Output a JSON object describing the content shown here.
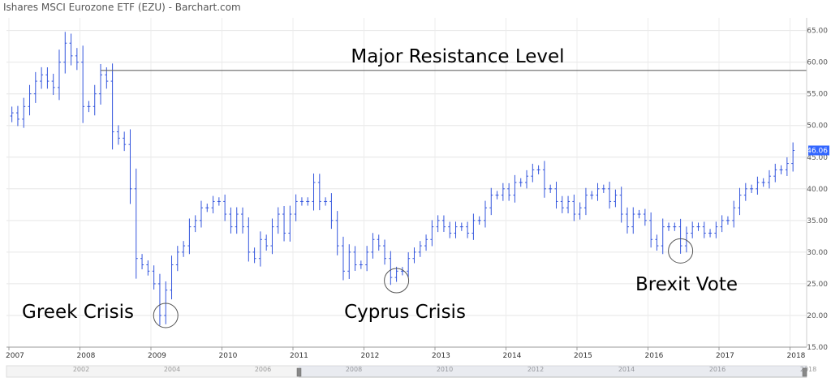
{
  "chart_data": {
    "type": "ohlc",
    "title": "Ishares MSCI Eurozone ETF (EZU) - Barchart.com",
    "y_ticks": [
      "15.00",
      "20.00",
      "25.00",
      "30.00",
      "35.00",
      "40.00",
      "45.00",
      "50.00",
      "55.00",
      "60.00",
      "65.00"
    ],
    "ylim": [
      15,
      67
    ],
    "x_ticks": [
      "2007",
      "2008",
      "2009",
      "2010",
      "2011",
      "2012",
      "2013",
      "2014",
      "2015",
      "2016",
      "2017",
      "2018"
    ],
    "navigator_ticks": [
      "2002",
      "2004",
      "2006",
      "2008",
      "2010",
      "2012",
      "2014",
      "2016",
      "2018"
    ],
    "grid": true,
    "series_color": "#3355dd",
    "last_price": "46.06",
    "last_price_color": "#3366ff",
    "resistance": {
      "value": 58.7,
      "start": "2008-04",
      "label": "Major Resistance Level"
    },
    "annotations": [
      {
        "label": "Greek Crisis",
        "date": "2009-03",
        "price": 20.0
      },
      {
        "label": "Cyprus Crisis",
        "date": "2012-06",
        "price": 25.5
      },
      {
        "label": "Brexit Vote",
        "date": "2016-06",
        "price": 30.2
      }
    ],
    "monthly_close": [
      [
        "2007-01",
        52
      ],
      [
        "2007-02",
        51
      ],
      [
        "2007-03",
        53
      ],
      [
        "2007-04",
        55
      ],
      [
        "2007-05",
        57
      ],
      [
        "2007-06",
        58
      ],
      [
        "2007-07",
        57
      ],
      [
        "2007-08",
        56
      ],
      [
        "2007-09",
        60
      ],
      [
        "2007-10",
        63
      ],
      [
        "2007-11",
        61
      ],
      [
        "2007-12",
        60
      ],
      [
        "2008-01",
        53
      ],
      [
        "2008-02",
        53
      ],
      [
        "2008-03",
        55
      ],
      [
        "2008-04",
        58
      ],
      [
        "2008-05",
        57
      ],
      [
        "2008-06",
        49
      ],
      [
        "2008-07",
        48
      ],
      [
        "2008-08",
        47
      ],
      [
        "2008-09",
        40
      ],
      [
        "2008-10",
        29
      ],
      [
        "2008-11",
        28
      ],
      [
        "2008-12",
        27
      ],
      [
        "2009-01",
        25
      ],
      [
        "2009-02",
        20
      ],
      [
        "2009-03",
        24
      ],
      [
        "2009-04",
        28
      ],
      [
        "2009-05",
        30
      ],
      [
        "2009-06",
        31
      ],
      [
        "2009-07",
        34
      ],
      [
        "2009-08",
        35
      ],
      [
        "2009-09",
        37
      ],
      [
        "2009-10",
        37
      ],
      [
        "2009-11",
        38
      ],
      [
        "2009-12",
        38
      ],
      [
        "2010-01",
        36
      ],
      [
        "2010-02",
        34
      ],
      [
        "2010-03",
        36
      ],
      [
        "2010-04",
        34
      ],
      [
        "2010-05",
        30
      ],
      [
        "2010-06",
        29
      ],
      [
        "2010-07",
        32
      ],
      [
        "2010-08",
        31
      ],
      [
        "2010-09",
        34
      ],
      [
        "2010-10",
        36
      ],
      [
        "2010-11",
        33
      ],
      [
        "2010-12",
        36
      ],
      [
        "2011-01",
        38
      ],
      [
        "2011-02",
        38
      ],
      [
        "2011-03",
        38
      ],
      [
        "2011-04",
        41
      ],
      [
        "2011-05",
        38
      ],
      [
        "2011-06",
        38
      ],
      [
        "2011-07",
        35
      ],
      [
        "2011-08",
        31
      ],
      [
        "2011-09",
        27
      ],
      [
        "2011-10",
        30
      ],
      [
        "2011-11",
        28
      ],
      [
        "2011-12",
        28
      ],
      [
        "2012-01",
        30
      ],
      [
        "2012-02",
        32
      ],
      [
        "2012-03",
        31
      ],
      [
        "2012-04",
        29
      ],
      [
        "2012-05",
        26
      ],
      [
        "2012-06",
        27
      ],
      [
        "2012-07",
        27
      ],
      [
        "2012-08",
        29
      ],
      [
        "2012-09",
        30
      ],
      [
        "2012-10",
        31
      ],
      [
        "2012-11",
        32
      ],
      [
        "2012-12",
        34
      ],
      [
        "2013-01",
        35
      ],
      [
        "2013-02",
        34
      ],
      [
        "2013-03",
        33
      ],
      [
        "2013-04",
        34
      ],
      [
        "2013-05",
        34
      ],
      [
        "2013-06",
        33
      ],
      [
        "2013-07",
        35
      ],
      [
        "2013-08",
        35
      ],
      [
        "2013-09",
        37
      ],
      [
        "2013-10",
        39
      ],
      [
        "2013-11",
        39
      ],
      [
        "2013-12",
        40
      ],
      [
        "2014-01",
        39
      ],
      [
        "2014-02",
        41
      ],
      [
        "2014-03",
        41
      ],
      [
        "2014-04",
        42
      ],
      [
        "2014-05",
        43
      ],
      [
        "2014-06",
        43
      ],
      [
        "2014-07",
        40
      ],
      [
        "2014-08",
        40
      ],
      [
        "2014-09",
        38
      ],
      [
        "2014-10",
        37
      ],
      [
        "2014-11",
        38
      ],
      [
        "2014-12",
        36
      ],
      [
        "2015-01",
        37
      ],
      [
        "2015-02",
        39
      ],
      [
        "2015-03",
        39
      ],
      [
        "2015-04",
        40
      ],
      [
        "2015-05",
        40
      ],
      [
        "2015-06",
        38
      ],
      [
        "2015-07",
        39
      ],
      [
        "2015-08",
        36
      ],
      [
        "2015-09",
        34
      ],
      [
        "2015-10",
        36
      ],
      [
        "2015-11",
        36
      ],
      [
        "2015-12",
        35
      ],
      [
        "2016-01",
        32
      ],
      [
        "2016-02",
        31
      ],
      [
        "2016-03",
        34
      ],
      [
        "2016-04",
        34
      ],
      [
        "2016-05",
        34
      ],
      [
        "2016-06",
        31
      ],
      [
        "2016-07",
        33
      ],
      [
        "2016-08",
        34
      ],
      [
        "2016-09",
        34
      ],
      [
        "2016-10",
        33
      ],
      [
        "2016-11",
        33
      ],
      [
        "2016-12",
        34
      ],
      [
        "2017-01",
        35
      ],
      [
        "2017-02",
        35
      ],
      [
        "2017-03",
        37
      ],
      [
        "2017-04",
        39
      ],
      [
        "2017-05",
        40
      ],
      [
        "2017-06",
        40
      ],
      [
        "2017-07",
        41
      ],
      [
        "2017-08",
        41
      ],
      [
        "2017-09",
        42
      ],
      [
        "2017-10",
        43
      ],
      [
        "2017-11",
        43
      ],
      [
        "2017-12",
        44
      ],
      [
        "2018-01",
        46.06
      ]
    ]
  }
}
